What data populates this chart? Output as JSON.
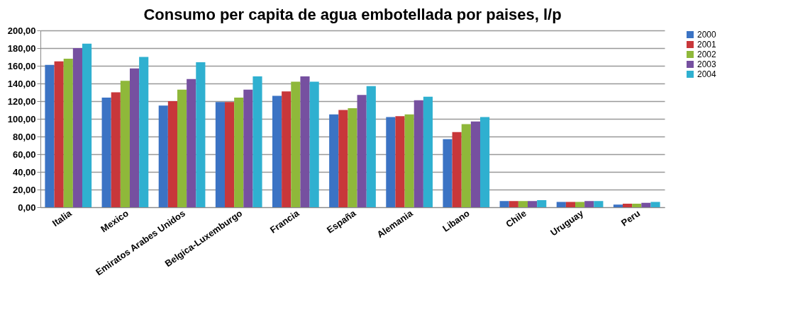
{
  "chart_data": {
    "type": "bar",
    "title": "Consumo per capita de agua embotellada por paises, l/p",
    "categories": [
      "Italia",
      "Mexico",
      "Emiratos Arabes Unidos",
      "Belgica-Luxemburgo",
      "Francia",
      "España",
      "Alemania",
      "Libano",
      "Chile",
      "Uruguay",
      "Peru"
    ],
    "series": [
      {
        "name": "2000",
        "color": "#3b73c4",
        "values": [
          161,
          124,
          115,
          119,
          126,
          105,
          102,
          77,
          7,
          6,
          3
        ]
      },
      {
        "name": "2001",
        "color": "#c8373a",
        "values": [
          165,
          130,
          120,
          119,
          131,
          110,
          103,
          85,
          7,
          6,
          4
        ]
      },
      {
        "name": "2002",
        "color": "#8fb83a",
        "values": [
          168,
          143,
          133,
          124,
          142,
          112,
          105,
          94,
          7,
          6,
          4
        ]
      },
      {
        "name": "2003",
        "color": "#7650a0",
        "values": [
          180,
          157,
          145,
          133,
          148,
          127,
          121,
          97,
          7,
          7,
          5
        ]
      },
      {
        "name": "2004",
        "color": "#2fb0d0",
        "values": [
          185,
          170,
          164,
          148,
          142,
          137,
          125,
          102,
          8,
          7,
          6
        ]
      }
    ],
    "ylim": [
      0,
      200
    ],
    "yticks": [
      {
        "value": 0,
        "label": "0,00"
      },
      {
        "value": 20,
        "label": "20,00"
      },
      {
        "value": 40,
        "label": "40,00"
      },
      {
        "value": 60,
        "label": "60,00"
      },
      {
        "value": 80,
        "label": "80,00"
      },
      {
        "value": 100,
        "label": "100,00"
      },
      {
        "value": 120,
        "label": "120,00"
      },
      {
        "value": 140,
        "label": "140,00"
      },
      {
        "value": 160,
        "label": "160,00"
      },
      {
        "value": 180,
        "label": "180,00"
      },
      {
        "value": 200,
        "label": "200,00"
      }
    ],
    "grid": "y",
    "legend": "right"
  }
}
